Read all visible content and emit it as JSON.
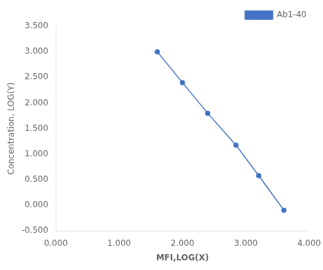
{
  "chart_data": {
    "type": "line",
    "x": [
      1.602,
      2.0,
      2.398,
      2.845,
      3.204,
      3.602
    ],
    "series": [
      {
        "name": "Ab1-40",
        "color": "#4472C4",
        "marker": "circle",
        "values": [
          3.0,
          2.398,
          1.799,
          1.176,
          0.58,
          -0.097
        ]
      }
    ],
    "xlabel": "MFI,LOG(X)",
    "ylabel": "Concentration, LOG(Y)",
    "xlim": [
      0.0,
      4.0
    ],
    "ylim": [
      -0.5,
      3.5
    ],
    "xticks": [
      {
        "value": 0.0,
        "label": "0.000"
      },
      {
        "value": 1.0,
        "label": "1.000"
      },
      {
        "value": 2.0,
        "label": "2.000"
      },
      {
        "value": 3.0,
        "label": "3.000"
      },
      {
        "value": 4.0,
        "label": "4.000"
      }
    ],
    "yticks": [
      {
        "value": -0.5,
        "label": "-0.500"
      },
      {
        "value": 0.0,
        "label": "0.000"
      },
      {
        "value": 0.5,
        "label": "0.500"
      },
      {
        "value": 1.0,
        "label": "1.000"
      },
      {
        "value": 1.5,
        "label": "1.500"
      },
      {
        "value": 2.0,
        "label": "2.000"
      },
      {
        "value": 2.5,
        "label": "2.500"
      },
      {
        "value": 3.0,
        "label": "3.000"
      },
      {
        "value": 3.5,
        "label": "3.500"
      }
    ],
    "grid": false,
    "legend": "upper right"
  }
}
